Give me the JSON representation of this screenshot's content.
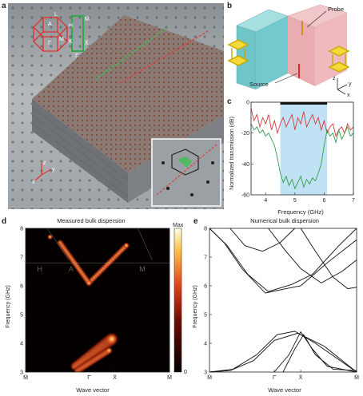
{
  "panels": {
    "a": {
      "label": "a",
      "bz_labels": [
        "L",
        "M",
        "H",
        "K",
        "Γ",
        "A",
        "M̄",
        "Γ̄",
        "X̄"
      ],
      "axes": [
        "z",
        "y",
        "x"
      ]
    },
    "b": {
      "label": "b",
      "probe": "Probe",
      "source": "Source",
      "axes": [
        "z",
        "y",
        "x"
      ]
    },
    "c": {
      "label": "c",
      "chart_data": {
        "type": "line",
        "xlabel": "Frequency (GHz)",
        "ylabel": "Normalized transmission (dB)",
        "xlim": [
          3.5,
          7
        ],
        "ylim": [
          -60,
          0
        ],
        "xticks": [
          "4",
          "5",
          "6",
          "7"
        ],
        "yticks": [
          "0",
          "-20",
          "-40",
          "-60"
        ],
        "band": [
          4.5,
          6.1
        ],
        "series": [
          {
            "color": "#d23a3a",
            "x": [
              3.5,
              3.6,
              3.7,
              3.8,
              3.9,
              4.0,
              4.1,
              4.2,
              4.3,
              4.4,
              4.5,
              4.6,
              4.7,
              4.8,
              4.9,
              5.0,
              5.1,
              5.2,
              5.3,
              5.4,
              5.5,
              5.6,
              5.7,
              5.8,
              5.9,
              6.0,
              6.1,
              6.2,
              6.3,
              6.4,
              6.5,
              6.6,
              6.7,
              6.8,
              6.9,
              7.0
            ],
            "y": [
              -4,
              -12,
              -8,
              -16,
              -10,
              -14,
              -8,
              -18,
              -12,
              -20,
              -14,
              -10,
              -16,
              -12,
              -8,
              -18,
              -10,
              -14,
              -6,
              -16,
              -12,
              -8,
              -14,
              -10,
              -18,
              -12,
              -20,
              -16,
              -14,
              -22,
              -18,
              -16,
              -20,
              -14,
              -18,
              -16
            ]
          },
          {
            "color": "#3a9a4a",
            "x": [
              3.5,
              3.6,
              3.7,
              3.8,
              3.9,
              4.0,
              4.1,
              4.2,
              4.3,
              4.4,
              4.5,
              4.6,
              4.7,
              4.8,
              4.9,
              5.0,
              5.1,
              5.2,
              5.3,
              5.4,
              5.5,
              5.6,
              5.7,
              5.8,
              5.9,
              6.0,
              6.1,
              6.2,
              6.3,
              6.4,
              6.5,
              6.6,
              6.7,
              6.8,
              6.9,
              7.0
            ],
            "y": [
              -14,
              -18,
              -16,
              -20,
              -18,
              -22,
              -20,
              -24,
              -28,
              -36,
              -46,
              -52,
              -48,
              -54,
              -50,
              -56,
              -52,
              -48,
              -55,
              -50,
              -53,
              -49,
              -51,
              -46,
              -40,
              -28,
              -18,
              -22,
              -20,
              -26,
              -18,
              -24,
              -20,
              -16,
              -22,
              -20
            ]
          }
        ]
      }
    },
    "d": {
      "label": "d",
      "chart_data": {
        "type": "heatmap",
        "title": "Measured bulk dispersion",
        "xlabel": "Wave vector",
        "ylabel": "Frequency (GHz)",
        "ylim": [
          3,
          8
        ],
        "xticks": [
          "M̄",
          "Γ̄",
          "X̄",
          "M̄"
        ],
        "yticks": [
          "3",
          "4",
          "5",
          "6",
          "7",
          "8"
        ],
        "colorbar": {
          "max_label": "Max",
          "min_label": "0"
        },
        "overlay_labels": [
          "H",
          "A",
          "M"
        ]
      }
    },
    "e": {
      "label": "e",
      "chart_data": {
        "type": "line",
        "title": "Numerical bulk dispersion",
        "xlabel": "Wave vector",
        "ylabel": "Frequency (GHz)",
        "ylim": [
          3,
          8
        ],
        "xticks": [
          "M̄",
          "Γ̄",
          "X̄",
          "M̄"
        ],
        "yticks": [
          "3",
          "4",
          "5",
          "6",
          "7",
          "8"
        ]
      }
    }
  }
}
